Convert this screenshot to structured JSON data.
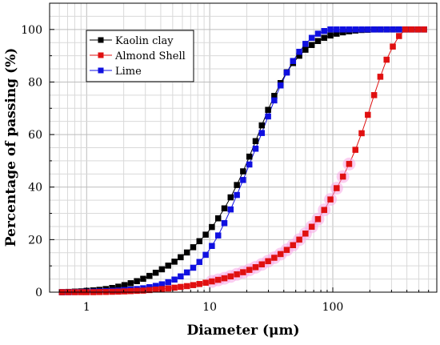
{
  "chart_data": {
    "type": "line",
    "xlabel": "Diameter (μm)",
    "ylabel": "Percentage of passing (%)",
    "xscale": "log",
    "xlim": [
      0.5,
      700
    ],
    "ylim": [
      0,
      110
    ],
    "grid": true,
    "legend_position": "top-left",
    "x_ticks": [
      1,
      10,
      100
    ],
    "x_tick_labels": [
      "1",
      "10",
      "100"
    ],
    "y_ticks": [
      0,
      20,
      40,
      60,
      80,
      100
    ],
    "y_tick_labels": [
      "0",
      "20",
      "40",
      "60",
      "80",
      "100"
    ],
    "x": [
      0.63,
      0.71,
      0.8,
      0.9,
      1.0,
      1.13,
      1.27,
      1.43,
      1.61,
      1.81,
      2.03,
      2.28,
      2.56,
      2.88,
      3.24,
      3.64,
      4.09,
      4.6,
      5.17,
      5.81,
      6.53,
      7.34,
      8.25,
      9.27,
      10.42,
      11.71,
      13.16,
      14.79,
      16.62,
      18.68,
      20.99,
      23.59,
      26.51,
      29.79,
      33.48,
      37.62,
      42.28,
      47.51,
      53.39,
      60.0,
      67.43,
      75.78,
      85.16,
      95.7,
      107.55,
      120.86,
      135.82,
      152.63,
      171.52,
      192.75,
      216.61,
      243.42,
      273.55,
      307.4,
      345.45,
      388.21,
      436.26,
      490.26,
      550.94
    ],
    "series": [
      {
        "name": "Kaolin clay",
        "color": "#000000",
        "values": [
          0.0,
          0.1,
          0.2,
          0.3,
          0.5,
          0.7,
          0.9,
          1.2,
          1.6,
          2.1,
          2.7,
          3.4,
          4.2,
          5.1,
          6.2,
          7.4,
          8.7,
          10.1,
          11.6,
          13.3,
          15.1,
          17.1,
          19.4,
          21.9,
          24.8,
          28.1,
          31.9,
          36.1,
          40.8,
          46.0,
          51.6,
          57.5,
          63.5,
          69.4,
          74.7,
          79.6,
          83.7,
          87.2,
          90.0,
          92.3,
          94.1,
          95.6,
          96.8,
          97.7,
          98.4,
          98.9,
          99.3,
          99.6,
          99.8,
          99.9,
          100.0,
          100.0,
          100.0,
          100.0,
          100.0,
          100.0,
          100.0,
          100.0,
          100.0
        ]
      },
      {
        "name": "Almond Shell",
        "color": "#e01010",
        "values": [
          0.0,
          0.0,
          0.0,
          0.0,
          0.0,
          0.0,
          0.05,
          0.1,
          0.15,
          0.2,
          0.3,
          0.4,
          0.5,
          0.6,
          0.8,
          1.0,
          1.2,
          1.4,
          1.7,
          2.0,
          2.3,
          2.7,
          3.1,
          3.6,
          4.1,
          4.7,
          5.3,
          6.0,
          6.8,
          7.6,
          8.5,
          9.5,
          10.6,
          11.8,
          13.1,
          14.5,
          16.1,
          17.9,
          20.0,
          22.3,
          24.9,
          27.8,
          31.3,
          35.3,
          39.6,
          44.0,
          48.8,
          54.2,
          60.5,
          67.5,
          75.0,
          82.0,
          88.5,
          93.5,
          97.5,
          100.0,
          100.0,
          100.0,
          100.0
        ]
      },
      {
        "name": "Lime",
        "color": "#1010e0",
        "values": [
          0.0,
          0.0,
          0.05,
          0.1,
          0.15,
          0.2,
          0.3,
          0.4,
          0.5,
          0.6,
          0.8,
          1.0,
          1.2,
          1.5,
          1.9,
          2.4,
          3.0,
          3.8,
          4.8,
          6.0,
          7.5,
          9.3,
          11.5,
          14.2,
          17.6,
          21.6,
          26.3,
          31.5,
          37.0,
          42.7,
          48.6,
          54.6,
          60.6,
          66.9,
          73.0,
          78.7,
          83.6,
          88.0,
          91.5,
          94.5,
          96.8,
          98.4,
          99.4,
          100.0,
          100.0,
          100.0,
          100.0,
          100.0,
          100.0,
          100.0,
          100.0,
          100.0,
          100.0,
          100.0,
          100.0,
          100.0,
          100.0,
          100.0,
          100.0
        ]
      }
    ]
  }
}
